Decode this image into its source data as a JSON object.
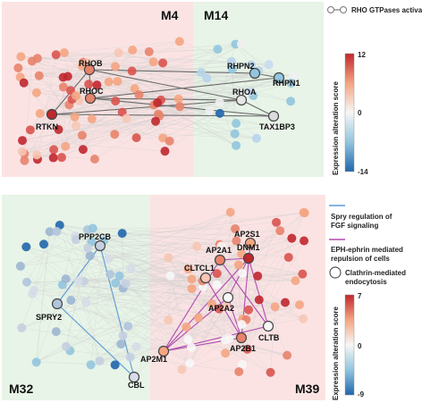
{
  "panels": [
    {
      "modules": [
        {
          "label": "M4",
          "bg": "#fbe3e3"
        },
        {
          "label": "M14",
          "bg": "#e7f4e7"
        }
      ],
      "genes": [
        "RHOB",
        "RHOC",
        "RTKN",
        "RHPN2",
        "RHOA",
        "RHPN1",
        "TAX1BP3"
      ],
      "legend": [
        {
          "text": "RHO GTPases activate rhotekin and rhophilins",
          "color": "#777777",
          "style": "dot-line"
        }
      ],
      "colorbar": {
        "title": "Expression alteration score",
        "max": "12",
        "mid": "0",
        "min": "-14"
      }
    },
    {
      "modules": [
        {
          "label": "M32",
          "bg": "#e7f4e7"
        },
        {
          "label": "M39",
          "bg": "#fbe3e3"
        }
      ],
      "genes": [
        "PPP2CB",
        "SPRY2",
        "CBL",
        "AP2S1",
        "DNM1",
        "AP2A1",
        "CLTCL1",
        "AP2A2",
        "AP2M1",
        "CLTB",
        "AP2B1"
      ],
      "legend": [
        {
          "text": "Spry regulation of FGF signaling",
          "color": "#5b9bd5",
          "style": "line"
        },
        {
          "text": "EPH-ephrin mediated repulsion of cells",
          "color": "#b04ab0",
          "style": "line"
        },
        {
          "text": "Clathrin-mediated endocytosis",
          "color": "#555555",
          "style": "circle"
        }
      ],
      "colorbar": {
        "title": "Expression alteration score",
        "max": "7",
        "mid": "0",
        "min": "-9"
      }
    }
  ],
  "colors": {
    "high": "#c0272d",
    "mid_high": "#f4a582",
    "neutral": "#f7f7f7",
    "mid_low": "#92c5de",
    "low": "#2166ac",
    "edge": "#cfcfcf",
    "pathway_edge": "#6b6b6b"
  }
}
